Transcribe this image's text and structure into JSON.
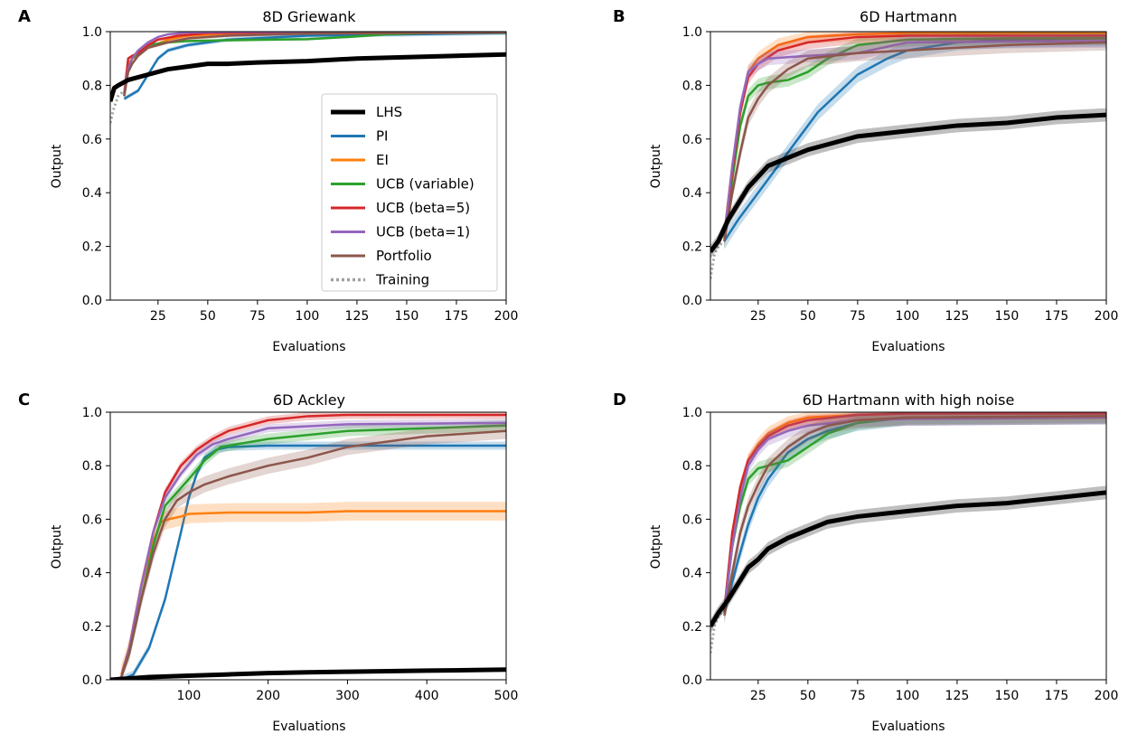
{
  "colors": {
    "LHS": "#000000",
    "PI": "#1f77b4",
    "EI": "#ff7f0e",
    "UCB (variable)": "#2ca02c",
    "UCB (beta=5)": "#d62728",
    "UCB (beta=1)": "#9467bd",
    "Portfolio": "#8c564b",
    "Training": "#a0a0a0"
  },
  "legend": {
    "entries": [
      "LHS",
      "PI",
      "EI",
      "UCB (variable)",
      "UCB (beta=5)",
      "UCB (beta=1)",
      "Portfolio",
      "Training"
    ]
  },
  "chart_data": [
    {
      "panel": "A",
      "type": "line",
      "title": "8D Griewank",
      "xlabel": "Evaluations",
      "ylabel": "Output",
      "xlim": [
        1,
        200
      ],
      "ylim": [
        0,
        1
      ],
      "xticks": [
        25,
        50,
        75,
        100,
        125,
        150,
        175,
        200
      ],
      "yticks": [
        0.0,
        0.2,
        0.4,
        0.6,
        0.8,
        1.0
      ],
      "yticklabels": [
        "0.0",
        "0.2",
        "0.4",
        "0.6",
        "0.8",
        "1.0"
      ],
      "legend_location": "center-right",
      "series": [
        {
          "name": "Training",
          "x": [
            1,
            3,
            5,
            8
          ],
          "y": [
            0.66,
            0.72,
            0.76,
            0.78
          ],
          "band": 0
        },
        {
          "name": "PI",
          "x": [
            8,
            15,
            20,
            25,
            30,
            40,
            60,
            100,
            150,
            200
          ],
          "y": [
            0.75,
            0.78,
            0.84,
            0.9,
            0.93,
            0.95,
            0.97,
            0.985,
            0.99,
            0.995
          ],
          "band": 0.008
        },
        {
          "name": "EI",
          "x": [
            8,
            10,
            12,
            15,
            20,
            30,
            40,
            60,
            100,
            200
          ],
          "y": [
            0.76,
            0.88,
            0.9,
            0.91,
            0.94,
            0.97,
            0.985,
            0.993,
            0.997,
            0.998
          ],
          "band": 0.005
        },
        {
          "name": "UCB (variable)",
          "x": [
            8,
            10,
            12,
            15,
            20,
            30,
            40,
            60,
            80,
            100,
            120,
            140,
            160,
            200
          ],
          "y": [
            0.76,
            0.86,
            0.9,
            0.92,
            0.95,
            0.96,
            0.965,
            0.968,
            0.97,
            0.972,
            0.98,
            0.99,
            0.995,
            0.997
          ],
          "band": 0.005
        },
        {
          "name": "UCB (beta=5)",
          "x": [
            8,
            10,
            12,
            15,
            20,
            25,
            35,
            50,
            100,
            200
          ],
          "y": [
            0.77,
            0.9,
            0.91,
            0.92,
            0.95,
            0.97,
            0.985,
            0.995,
            0.998,
            0.999
          ],
          "band": 0.005
        },
        {
          "name": "UCB (beta=1)",
          "x": [
            8,
            10,
            12,
            15,
            20,
            25,
            30,
            40,
            60,
            100,
            200
          ],
          "y": [
            0.77,
            0.86,
            0.9,
            0.93,
            0.96,
            0.98,
            0.99,
            0.997,
            0.999,
            1.0,
            1.0
          ],
          "band": 0.004
        },
        {
          "name": "Portfolio",
          "x": [
            8,
            10,
            12,
            15,
            20,
            30,
            40,
            60,
            100,
            200
          ],
          "y": [
            0.76,
            0.85,
            0.88,
            0.91,
            0.94,
            0.96,
            0.975,
            0.985,
            0.993,
            0.997
          ],
          "band": 0.006
        },
        {
          "name": "LHS",
          "x": [
            1,
            3,
            5,
            10,
            20,
            30,
            40,
            50,
            60,
            75,
            100,
            125,
            150,
            175,
            200
          ],
          "y": [
            0.74,
            0.79,
            0.8,
            0.82,
            0.84,
            0.86,
            0.87,
            0.88,
            0.88,
            0.885,
            0.89,
            0.9,
            0.905,
            0.91,
            0.915
          ],
          "band": 0.004
        }
      ]
    },
    {
      "panel": "B",
      "type": "line",
      "title": "6D Hartmann",
      "xlabel": "Evaluations",
      "ylabel": "Output",
      "xlim": [
        1,
        200
      ],
      "ylim": [
        0,
        1
      ],
      "xticks": [
        25,
        50,
        75,
        100,
        125,
        150,
        175,
        200
      ],
      "yticks": [
        0.0,
        0.2,
        0.4,
        0.6,
        0.8,
        1.0
      ],
      "yticklabels": [
        "0.0",
        "0.2",
        "0.4",
        "0.6",
        "0.8",
        "1.0"
      ],
      "series": [
        {
          "name": "Training",
          "x": [
            1,
            3,
            5,
            8
          ],
          "y": [
            0.08,
            0.17,
            0.2,
            0.22
          ],
          "band": 0
        },
        {
          "name": "PI",
          "x": [
            8,
            15,
            25,
            35,
            45,
            55,
            65,
            75,
            90,
            100,
            125,
            150,
            200
          ],
          "y": [
            0.22,
            0.3,
            0.4,
            0.5,
            0.6,
            0.7,
            0.77,
            0.84,
            0.9,
            0.93,
            0.96,
            0.97,
            0.975
          ],
          "band": 0.03
        },
        {
          "name": "EI",
          "x": [
            8,
            12,
            16,
            20,
            25,
            35,
            50,
            75,
            100,
            200
          ],
          "y": [
            0.25,
            0.5,
            0.7,
            0.85,
            0.9,
            0.95,
            0.98,
            0.99,
            0.995,
            0.995
          ],
          "band": 0.025
        },
        {
          "name": "UCB (variable)",
          "x": [
            8,
            12,
            16,
            20,
            25,
            30,
            40,
            50,
            60,
            75,
            100,
            150,
            200
          ],
          "y": [
            0.22,
            0.45,
            0.65,
            0.76,
            0.8,
            0.81,
            0.82,
            0.85,
            0.9,
            0.95,
            0.97,
            0.975,
            0.975
          ],
          "band": 0.025
        },
        {
          "name": "UCB (beta=5)",
          "x": [
            8,
            12,
            16,
            20,
            25,
            35,
            50,
            75,
            100,
            200
          ],
          "y": [
            0.23,
            0.48,
            0.7,
            0.83,
            0.88,
            0.93,
            0.96,
            0.98,
            0.985,
            0.985
          ],
          "band": 0.025
        },
        {
          "name": "UCB (beta=1)",
          "x": [
            8,
            12,
            16,
            20,
            25,
            30,
            50,
            75,
            100,
            200
          ],
          "y": [
            0.24,
            0.5,
            0.72,
            0.85,
            0.88,
            0.9,
            0.91,
            0.92,
            0.96,
            0.965
          ],
          "band": 0.025
        },
        {
          "name": "Portfolio",
          "x": [
            8,
            12,
            16,
            20,
            25,
            30,
            40,
            50,
            75,
            100,
            150,
            200
          ],
          "y": [
            0.22,
            0.4,
            0.55,
            0.68,
            0.75,
            0.8,
            0.86,
            0.9,
            0.92,
            0.93,
            0.95,
            0.96
          ],
          "band": 0.03
        },
        {
          "name": "LHS",
          "x": [
            1,
            5,
            10,
            15,
            20,
            25,
            30,
            40,
            50,
            60,
            75,
            100,
            125,
            150,
            175,
            200
          ],
          "y": [
            0.18,
            0.22,
            0.3,
            0.36,
            0.42,
            0.46,
            0.5,
            0.53,
            0.56,
            0.58,
            0.61,
            0.63,
            0.65,
            0.66,
            0.68,
            0.69
          ],
          "band": 0.025
        }
      ]
    },
    {
      "panel": "C",
      "type": "line",
      "title": "6D Ackley",
      "xlabel": "Evaluations",
      "ylabel": "Output",
      "xlim": [
        1,
        500
      ],
      "ylim": [
        0,
        1
      ],
      "xticks": [
        100,
        200,
        300,
        400,
        500
      ],
      "yticks": [
        0.0,
        0.2,
        0.4,
        0.6,
        0.8,
        1.0
      ],
      "yticklabels": [
        "0.0",
        "0.2",
        "0.4",
        "0.6",
        "0.8",
        "1.0"
      ],
      "series": [
        {
          "name": "Training",
          "x": [
            1,
            8,
            15
          ],
          "y": [
            0,
            0,
            0.01
          ],
          "band": 0
        },
        {
          "name": "PI",
          "x": [
            15,
            30,
            50,
            70,
            90,
            100,
            110,
            120,
            135,
            150,
            200,
            500
          ],
          "y": [
            0.0,
            0.02,
            0.12,
            0.3,
            0.55,
            0.68,
            0.77,
            0.83,
            0.86,
            0.87,
            0.875,
            0.875
          ],
          "band": 0.015
        },
        {
          "name": "EI",
          "x": [
            15,
            25,
            40,
            55,
            65,
            75,
            90,
            100,
            150,
            250,
            300,
            500
          ],
          "y": [
            0.02,
            0.12,
            0.35,
            0.52,
            0.59,
            0.6,
            0.61,
            0.62,
            0.625,
            0.625,
            0.63,
            0.63
          ],
          "band": 0.035
        },
        {
          "name": "UCB (variable)",
          "x": [
            15,
            25,
            40,
            55,
            70,
            85,
            100,
            120,
            140,
            160,
            200,
            300,
            500
          ],
          "y": [
            0.01,
            0.1,
            0.3,
            0.5,
            0.65,
            0.7,
            0.75,
            0.82,
            0.87,
            0.88,
            0.9,
            0.93,
            0.95
          ],
          "band": 0.02
        },
        {
          "name": "UCB (beta=5)",
          "x": [
            15,
            25,
            40,
            55,
            70,
            90,
            110,
            130,
            150,
            200,
            250,
            300,
            500
          ],
          "y": [
            0.01,
            0.12,
            0.35,
            0.55,
            0.7,
            0.8,
            0.86,
            0.9,
            0.93,
            0.97,
            0.985,
            0.99,
            0.99
          ],
          "band": 0.015
        },
        {
          "name": "UCB (beta=1)",
          "x": [
            15,
            25,
            40,
            55,
            70,
            90,
            110,
            130,
            150,
            200,
            300,
            500
          ],
          "y": [
            0.01,
            0.12,
            0.35,
            0.55,
            0.68,
            0.77,
            0.84,
            0.88,
            0.9,
            0.94,
            0.955,
            0.96
          ],
          "band": 0.015
        },
        {
          "name": "Portfolio",
          "x": [
            15,
            25,
            40,
            55,
            70,
            85,
            100,
            120,
            150,
            200,
            250,
            300,
            400,
            500
          ],
          "y": [
            0.01,
            0.1,
            0.3,
            0.47,
            0.6,
            0.67,
            0.7,
            0.73,
            0.76,
            0.8,
            0.83,
            0.87,
            0.91,
            0.93
          ],
          "band": 0.03
        },
        {
          "name": "LHS",
          "x": [
            1,
            50,
            100,
            150,
            200,
            250,
            300,
            350,
            400,
            450,
            500
          ],
          "y": [
            0.0,
            0.01,
            0.015,
            0.02,
            0.025,
            0.028,
            0.03,
            0.032,
            0.034,
            0.036,
            0.038
          ],
          "band": 0.006
        }
      ]
    },
    {
      "panel": "D",
      "type": "line",
      "title": "6D Hartmann with high noise",
      "xlabel": "Evaluations",
      "ylabel": "Output",
      "xlim": [
        1,
        200
      ],
      "ylim": [
        0,
        1
      ],
      "xticks": [
        25,
        50,
        75,
        100,
        125,
        150,
        175,
        200
      ],
      "yticks": [
        0.0,
        0.2,
        0.4,
        0.6,
        0.8,
        1.0
      ],
      "yticklabels": [
        "0.0",
        "0.2",
        "0.4",
        "0.6",
        "0.8",
        "1.0"
      ],
      "series": [
        {
          "name": "Training",
          "x": [
            1,
            3,
            5,
            8
          ],
          "y": [
            0.1,
            0.2,
            0.24,
            0.26
          ],
          "band": 0
        },
        {
          "name": "PI",
          "x": [
            8,
            15,
            20,
            25,
            30,
            40,
            50,
            60,
            75,
            100,
            200
          ],
          "y": [
            0.25,
            0.45,
            0.58,
            0.68,
            0.75,
            0.85,
            0.9,
            0.93,
            0.96,
            0.98,
            0.985
          ],
          "band": 0.03
        },
        {
          "name": "EI",
          "x": [
            8,
            12,
            16,
            20,
            25,
            30,
            40,
            50,
            75,
            100,
            200
          ],
          "y": [
            0.26,
            0.55,
            0.72,
            0.82,
            0.88,
            0.92,
            0.96,
            0.98,
            0.99,
            0.995,
            0.995
          ],
          "band": 0.025
        },
        {
          "name": "UCB (variable)",
          "x": [
            8,
            12,
            16,
            20,
            25,
            30,
            40,
            50,
            60,
            75,
            100,
            200
          ],
          "y": [
            0.25,
            0.5,
            0.65,
            0.75,
            0.79,
            0.8,
            0.82,
            0.87,
            0.92,
            0.96,
            0.98,
            0.985
          ],
          "band": 0.025
        },
        {
          "name": "UCB (beta=5)",
          "x": [
            8,
            12,
            16,
            20,
            25,
            30,
            40,
            50,
            75,
            100,
            200
          ],
          "y": [
            0.26,
            0.55,
            0.72,
            0.82,
            0.87,
            0.91,
            0.95,
            0.97,
            0.99,
            0.995,
            0.995
          ],
          "band": 0.02
        },
        {
          "name": "UCB (beta=1)",
          "x": [
            8,
            12,
            16,
            20,
            25,
            30,
            40,
            50,
            75,
            100,
            200
          ],
          "y": [
            0.26,
            0.5,
            0.68,
            0.8,
            0.86,
            0.9,
            0.93,
            0.95,
            0.97,
            0.975,
            0.98
          ],
          "band": 0.025
        },
        {
          "name": "Portfolio",
          "x": [
            8,
            12,
            16,
            20,
            25,
            30,
            40,
            50,
            60,
            75,
            100,
            200
          ],
          "y": [
            0.24,
            0.4,
            0.55,
            0.65,
            0.73,
            0.8,
            0.87,
            0.92,
            0.95,
            0.97,
            0.98,
            0.985
          ],
          "band": 0.03
        },
        {
          "name": "LHS",
          "x": [
            1,
            5,
            10,
            15,
            20,
            25,
            30,
            40,
            50,
            60,
            75,
            100,
            125,
            150,
            175,
            200
          ],
          "y": [
            0.2,
            0.25,
            0.3,
            0.36,
            0.42,
            0.45,
            0.49,
            0.53,
            0.56,
            0.59,
            0.61,
            0.63,
            0.65,
            0.66,
            0.68,
            0.7
          ],
          "band": 0.025
        }
      ]
    }
  ]
}
